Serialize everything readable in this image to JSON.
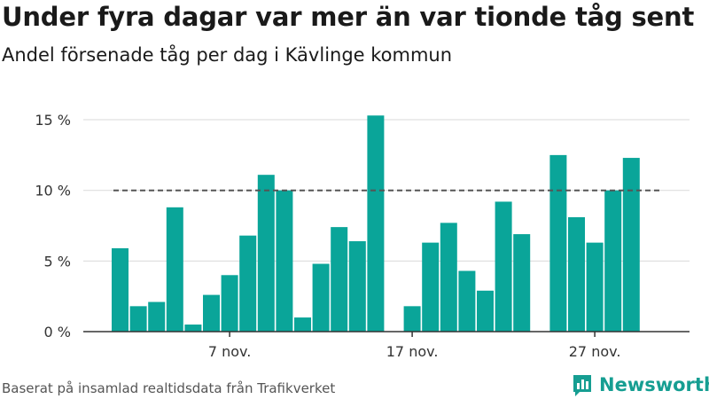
{
  "header": {
    "title": "Under fyra dagar var mer än var tionde tåg sent",
    "subtitle": "Andel försenade tåg per dag i Kävlinge kommun"
  },
  "footer": {
    "source": "Baserat på insamlad realtidsdata från Trafikverket",
    "brand": "Newsworthy",
    "brand_icon": "newsworthy-logo-icon"
  },
  "colors": {
    "bar": "#0aa599",
    "reference_line": "#555555",
    "grid": "#d9d9d9",
    "brand": "#169e92"
  },
  "chart_data": {
    "type": "bar",
    "title": "Under fyra dagar var mer än var tionde tåg sent",
    "subtitle": "Andel försenade tåg per dag i Kävlinge kommun",
    "xlabel": "",
    "ylabel": "",
    "x_unit": "day",
    "x": [
      1,
      2,
      3,
      4,
      5,
      6,
      7,
      8,
      9,
      10,
      11,
      12,
      13,
      14,
      15,
      16,
      17,
      18,
      19,
      20,
      21,
      22,
      23,
      24,
      25,
      26,
      27,
      28,
      29,
      30,
      31
    ],
    "values": [
      5.9,
      1.8,
      2.1,
      8.8,
      0.5,
      2.6,
      4.0,
      6.8,
      11.1,
      10.0,
      1.0,
      4.8,
      7.4,
      6.4,
      15.3,
      null,
      1.8,
      6.3,
      7.7,
      4.3,
      2.9,
      9.2,
      6.9,
      null,
      12.5,
      8.1,
      6.3,
      10.0,
      12.3,
      null,
      null
    ],
    "ylim": [
      0,
      16
    ],
    "yticks": [
      0,
      5,
      10,
      15
    ],
    "ytick_labels": [
      "0 %",
      "5 %",
      "10 %",
      "15 %"
    ],
    "xticks": [
      7,
      17,
      27
    ],
    "xtick_labels": [
      "7 nov.",
      "17 nov.",
      "27 nov."
    ],
    "reference_line": {
      "y": 10,
      "style": "dashed"
    },
    "grid": true
  }
}
